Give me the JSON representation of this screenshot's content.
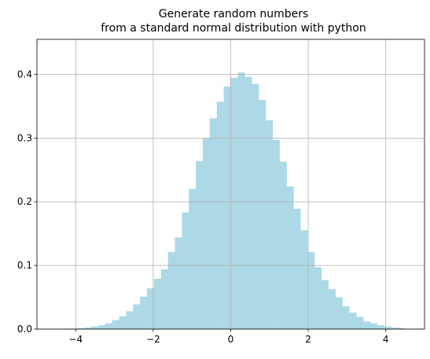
{
  "chart_data": {
    "type": "bar",
    "title": "Generate random numbers",
    "subtitle": "from a standard normal distribution with python",
    "xlabel": "",
    "ylabel": "",
    "xlim": [
      -5.0,
      5.0
    ],
    "ylim": [
      0,
      0.455
    ],
    "x_ticks": [
      {
        "value": -4,
        "label": "−4"
      },
      {
        "value": -2,
        "label": "−2"
      },
      {
        "value": 0,
        "label": "0"
      },
      {
        "value": 2,
        "label": "2"
      },
      {
        "value": 4,
        "label": "4"
      }
    ],
    "y_ticks": [
      {
        "value": 0.0,
        "label": "0.0"
      },
      {
        "value": 0.1,
        "label": "0.1"
      },
      {
        "value": 0.2,
        "label": "0.2"
      },
      {
        "value": 0.3,
        "label": "0.3"
      },
      {
        "value": 0.4,
        "label": "0.4"
      }
    ],
    "grid": true,
    "bar_color": "#add8e6",
    "bin_edges_start": -4.5,
    "bin_width": 0.18,
    "density": [
      0.0003,
      0.0005,
      0.0008,
      0.0015,
      0.0025,
      0.004,
      0.006,
      0.009,
      0.014,
      0.02,
      0.028,
      0.039,
      0.051,
      0.064,
      0.079,
      0.094,
      0.121,
      0.144,
      0.183,
      0.22,
      0.264,
      0.3,
      0.331,
      0.357,
      0.381,
      0.395,
      0.403,
      0.396,
      0.385,
      0.36,
      0.328,
      0.297,
      0.263,
      0.224,
      0.189,
      0.155,
      0.121,
      0.097,
      0.077,
      0.063,
      0.05,
      0.036,
      0.026,
      0.019,
      0.012,
      0.009,
      0.006,
      0.004,
      0.0025,
      0.0015
    ]
  },
  "colors": {
    "grid": "#b0b0b0",
    "axis": "#000000"
  }
}
